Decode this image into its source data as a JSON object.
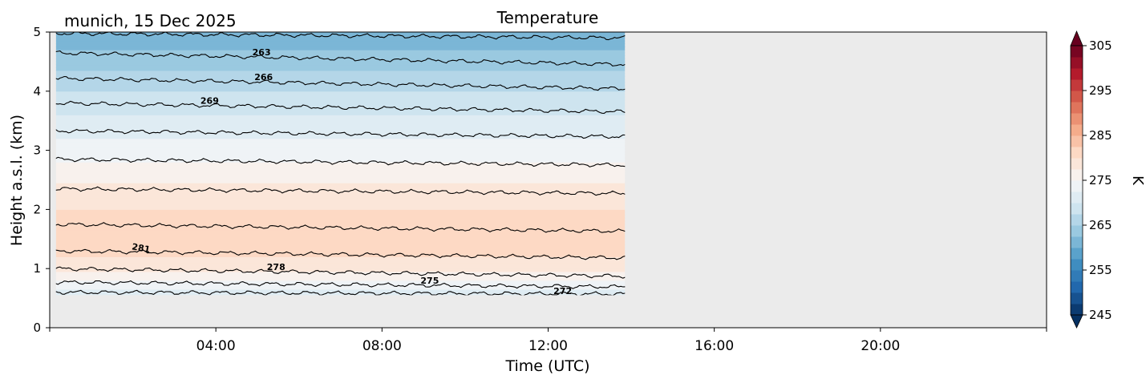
{
  "chart_data": {
    "type": "heatmap",
    "title": "Temperature",
    "subtitle": "munich, 15 Dec 2025",
    "xlabel": "Time (UTC)",
    "ylabel": "Height a.s.l. (km)",
    "x_unit": "hours",
    "xlim": [
      0,
      24
    ],
    "ylim": [
      0,
      5
    ],
    "x_ticks": [
      {
        "value": 4,
        "label": "04:00"
      },
      {
        "value": 8,
        "label": "08:00"
      },
      {
        "value": 12,
        "label": "12:00"
      },
      {
        "value": 16,
        "label": "16:00"
      },
      {
        "value": 20,
        "label": "20:00"
      }
    ],
    "y_ticks": [
      {
        "value": 0,
        "label": "0"
      },
      {
        "value": 1,
        "label": "1"
      },
      {
        "value": 2,
        "label": "2"
      },
      {
        "value": 3,
        "label": "3"
      },
      {
        "value": 4,
        "label": "4"
      },
      {
        "value": 5,
        "label": "5"
      }
    ],
    "data_extent": {
      "time_start": 0.15,
      "time_end": 13.85,
      "height_min": 0.55,
      "height_max": 5.0
    },
    "no_data_color": "#ebebeb",
    "colormap": "RdBu_r",
    "colorbar": {
      "label": "K",
      "min": 245,
      "max": 305,
      "extend": "both",
      "ticks": [
        {
          "value": 305,
          "label": "305"
        },
        {
          "value": 295,
          "label": "295"
        },
        {
          "value": 285,
          "label": "285"
        },
        {
          "value": 275,
          "label": "275"
        },
        {
          "value": 265,
          "label": "265"
        },
        {
          "value": 255,
          "label": "255"
        },
        {
          "value": 245,
          "label": "245"
        }
      ]
    },
    "temperature_profile": [
      {
        "height": 0.55,
        "temp": 270.0
      },
      {
        "height": 0.62,
        "temp": 272.0
      },
      {
        "height": 0.8,
        "temp": 275.0
      },
      {
        "height": 1.0,
        "temp": 278.0
      },
      {
        "height": 1.2,
        "temp": 280.0
      },
      {
        "height": 1.5,
        "temp": 281.5
      },
      {
        "height": 1.75,
        "temp": 281.0
      },
      {
        "height": 2.0,
        "temp": 280.0
      },
      {
        "height": 2.35,
        "temp": 278.0
      },
      {
        "height": 2.8,
        "temp": 275.0
      },
      {
        "height": 3.3,
        "temp": 272.0
      },
      {
        "height": 3.75,
        "temp": 269.0
      },
      {
        "height": 4.2,
        "temp": 266.0
      },
      {
        "height": 4.6,
        "temp": 263.0
      },
      {
        "height": 5.0,
        "temp": 260.5
      }
    ],
    "contours": [
      {
        "height": 0.6,
        "tilt": -0.03
      },
      {
        "height": 0.77,
        "tilt": -0.08
      },
      {
        "height": 1.0,
        "tilt": -0.13
      },
      {
        "height": 1.3,
        "tilt": -0.12
      },
      {
        "height": 1.75,
        "tilt": -0.12
      },
      {
        "height": 2.35,
        "tilt": -0.08
      },
      {
        "height": 2.85,
        "tilt": -0.1
      },
      {
        "height": 3.33,
        "tilt": -0.1
      },
      {
        "height": 3.8,
        "tilt": -0.15
      },
      {
        "height": 4.22,
        "tilt": -0.18
      },
      {
        "height": 4.65,
        "tilt": -0.2
      },
      {
        "height": 4.98,
        "tilt": -0.08
      }
    ],
    "contour_labels": [
      {
        "text": "263",
        "time": 5.1,
        "height": 4.66,
        "angle": 0
      },
      {
        "text": "266",
        "time": 5.15,
        "height": 4.24,
        "angle": 0
      },
      {
        "text": "269",
        "time": 3.85,
        "height": 3.84,
        "angle": 0
      },
      {
        "text": "281",
        "time": 2.2,
        "height": 1.35,
        "angle": 10
      },
      {
        "text": "278",
        "time": 5.45,
        "height": 1.03,
        "angle": 0
      },
      {
        "text": "275",
        "time": 9.15,
        "height": 0.8,
        "angle": 0
      },
      {
        "text": "272",
        "time": 12.35,
        "height": 0.62,
        "angle": 0
      }
    ]
  }
}
